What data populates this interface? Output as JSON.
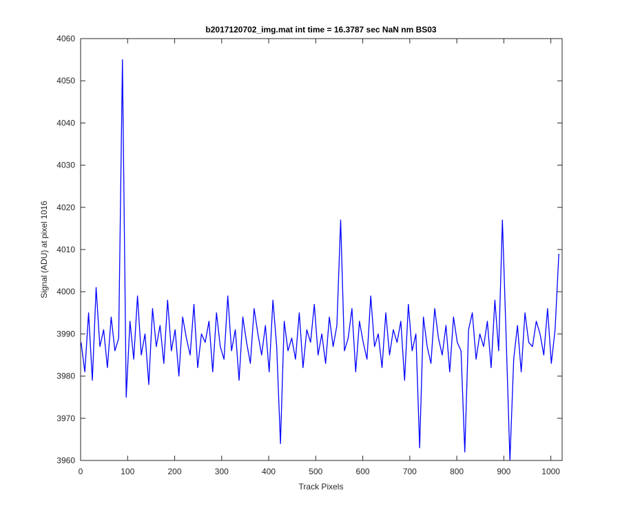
{
  "chart_data": {
    "type": "line",
    "title": "b2017120702_img.mat int time = 16.3787 sec  NaN nm BS03",
    "xlabel": "Track Pixels",
    "ylabel": "Signal (ADU) at pixel 1016",
    "xlim": [
      0,
      1024
    ],
    "ylim": [
      3960,
      4060
    ],
    "xticks": [
      "0",
      "100",
      "200",
      "300",
      "400",
      "500",
      "600",
      "700",
      "800",
      "900",
      "1000"
    ],
    "yticks": [
      "3960",
      "3970",
      "3980",
      "3990",
      "4000",
      "4010",
      "4020",
      "4030",
      "4040",
      "4050",
      "4060"
    ],
    "grid": false,
    "legend": "none",
    "colors": {
      "series": "#0000ff",
      "axes": "#262626"
    },
    "series": [
      {
        "x_start": 1,
        "x_step": 8,
        "values": [
          3988,
          3981,
          3995,
          3979,
          4001,
          3987,
          3991,
          3982,
          3994,
          3986,
          3989,
          4055,
          3975,
          3993,
          3984,
          3999,
          3985,
          3990,
          3978,
          3996,
          3987,
          3992,
          3983,
          3998,
          3986,
          3991,
          3980,
          3994,
          3989,
          3985,
          3997,
          3982,
          3990,
          3988,
          3993,
          3981,
          3995,
          3987,
          3984,
          3999,
          3986,
          3991,
          3979,
          3994,
          3988,
          3983,
          3996,
          3990,
          3985,
          3992,
          3981,
          3998,
          3987,
          3964,
          3993,
          3986,
          3989,
          3984,
          3995,
          3982,
          3991,
          3988,
          3997,
          3985,
          3990,
          3983,
          3994,
          3987,
          3992,
          4017,
          3986,
          3989,
          3996,
          3981,
          3993,
          3988,
          3984,
          3999,
          3987,
          3990,
          3982,
          3995,
          3985,
          3991,
          3988,
          3993,
          3979,
          3997,
          3986,
          3990,
          3963,
          3994,
          3987,
          3983,
          3996,
          3989,
          3985,
          3992,
          3981,
          3994,
          3988,
          3986,
          3962,
          3991,
          3995,
          3984,
          3990,
          3987,
          3993,
          3982,
          3998,
          3986,
          4017,
          3989,
          3960,
          3984,
          3992,
          3981,
          3995,
          3988,
          3987,
          3993,
          3990,
          3985,
          3996,
          3983,
          3991,
          4009
        ]
      }
    ]
  }
}
